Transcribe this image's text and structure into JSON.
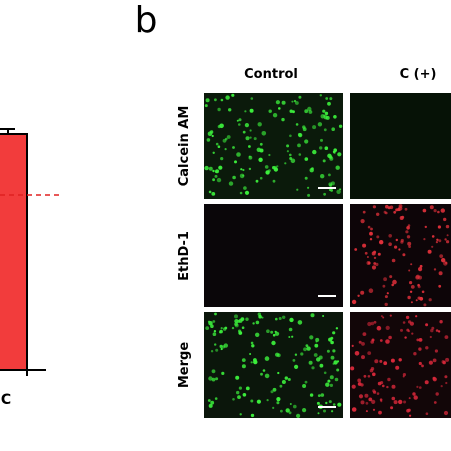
{
  "panel_letter": "b",
  "columns": [
    "Control",
    "C (+)"
  ],
  "rows": [
    "Calcein AM",
    "EthD-1",
    "Merge"
  ],
  "left_chart": {
    "category": "C"
  }
}
